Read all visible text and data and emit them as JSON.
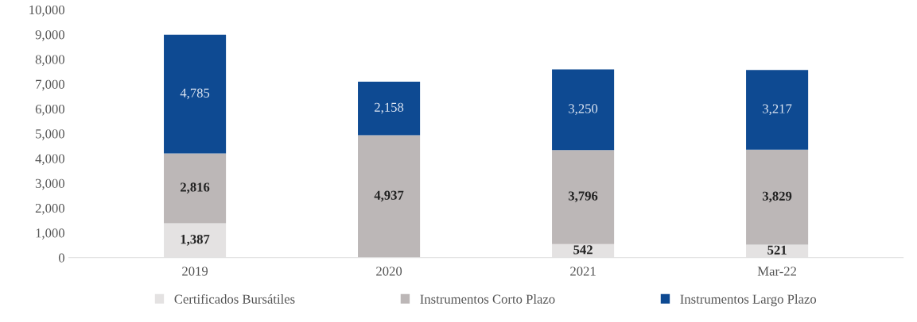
{
  "chart_data": {
    "type": "bar",
    "stacked": true,
    "categories": [
      "2019",
      "2020",
      "2021",
      "Mar-22"
    ],
    "series": [
      {
        "name": "Certificados Bursátiles",
        "color": "#e4e2e2",
        "values": [
          1387,
          0,
          542,
          521
        ],
        "value_labels": [
          "1,387",
          null,
          "542",
          "521"
        ]
      },
      {
        "name": "Instrumentos Corto Plazo",
        "color": "#bcb7b7",
        "values": [
          2816,
          4937,
          3796,
          3829
        ],
        "value_labels": [
          "2,816",
          "4,937",
          "3,796",
          "3,829"
        ]
      },
      {
        "name": "Instrumentos Largo Plazo",
        "color": "#0e4a92",
        "values": [
          4785,
          2158,
          3250,
          3217
        ],
        "value_labels": [
          "4,785",
          "2,158",
          "3,250",
          "3,217"
        ]
      }
    ],
    "ylim": [
      0,
      10000
    ],
    "yticks": [
      0,
      {
        "value": 1000,
        "label": "1,000"
      },
      {
        "value": 2000,
        "label": "2,000"
      },
      {
        "value": 3000,
        "label": "3,000"
      },
      {
        "value": 4000,
        "label": "4,000"
      },
      {
        "value": 5000,
        "label": "5,000"
      },
      {
        "value": 6000,
        "label": "6,000"
      },
      {
        "value": 7000,
        "label": "7,000"
      },
      {
        "value": 8000,
        "label": "8,000"
      },
      {
        "value": 9000,
        "label": "9,000"
      },
      {
        "value": 10000,
        "label": "10,000"
      }
    ],
    "grid": false,
    "legend": "bottom"
  }
}
